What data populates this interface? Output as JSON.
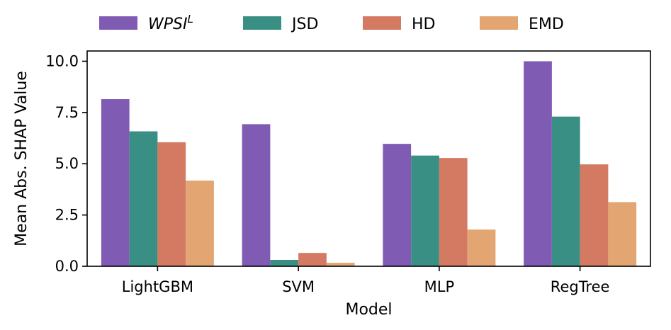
{
  "chart_data": {
    "type": "bar",
    "xlabel": "Model",
    "ylabel": "Mean Abs. SHAP Value",
    "categories": [
      "LightGBM",
      "SVM",
      "MLP",
      "RegTree"
    ],
    "ylim": [
      0,
      10.5
    ],
    "yticks": [
      "0.0",
      "2.5",
      "5.0",
      "7.5",
      "10.0"
    ],
    "ytick_values": [
      0,
      2.5,
      5,
      7.5,
      10
    ],
    "legend_position": "top-center, outside plot",
    "grid": false,
    "series": [
      {
        "name": "WPSI",
        "name_superscript": "L",
        "name_italic": true,
        "color": "#7f5bb4",
        "values": [
          8.15,
          6.93,
          5.97,
          10.0
        ]
      },
      {
        "name": "JSD",
        "color": "#3a8f85",
        "values": [
          6.58,
          0.31,
          5.4,
          7.3
        ]
      },
      {
        "name": "HD",
        "color": "#d47a63",
        "values": [
          6.05,
          0.65,
          5.28,
          4.97
        ]
      },
      {
        "name": "EMD",
        "color": "#e3a673",
        "values": [
          4.18,
          0.17,
          1.79,
          3.13
        ]
      }
    ]
  }
}
